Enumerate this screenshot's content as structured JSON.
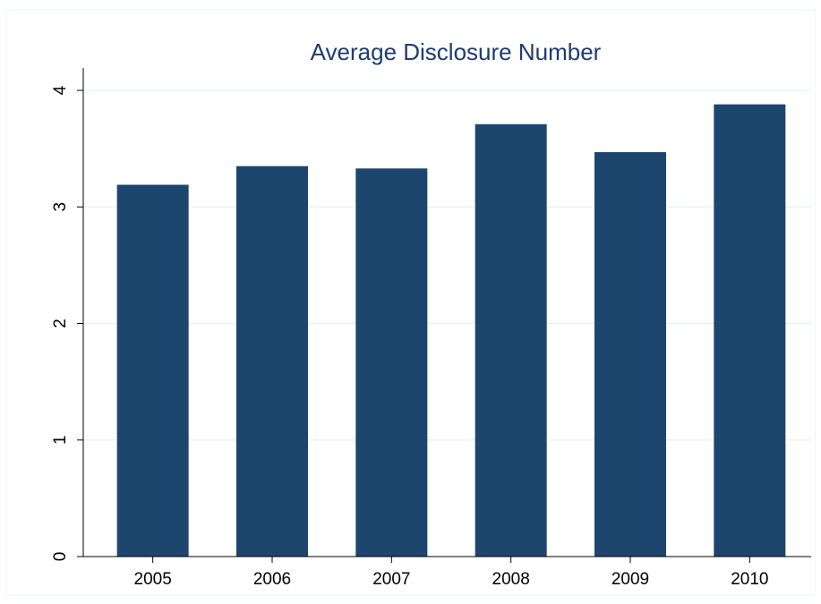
{
  "chart_data": {
    "type": "bar",
    "title": "Average Disclosure Number",
    "xlabel": "",
    "ylabel": "",
    "categories": [
      "2005",
      "2006",
      "2007",
      "2008",
      "2009",
      "2010"
    ],
    "values": [
      3.19,
      3.35,
      3.33,
      3.71,
      3.47,
      3.88
    ],
    "ylim": [
      0,
      4
    ],
    "yticks": [
      "0",
      "1",
      "2",
      "3",
      "4"
    ],
    "grid": true,
    "legend": "none",
    "colors": {
      "bar": "#1c466d",
      "title": "#1f3b6f",
      "grid": "#e6eef2"
    }
  }
}
